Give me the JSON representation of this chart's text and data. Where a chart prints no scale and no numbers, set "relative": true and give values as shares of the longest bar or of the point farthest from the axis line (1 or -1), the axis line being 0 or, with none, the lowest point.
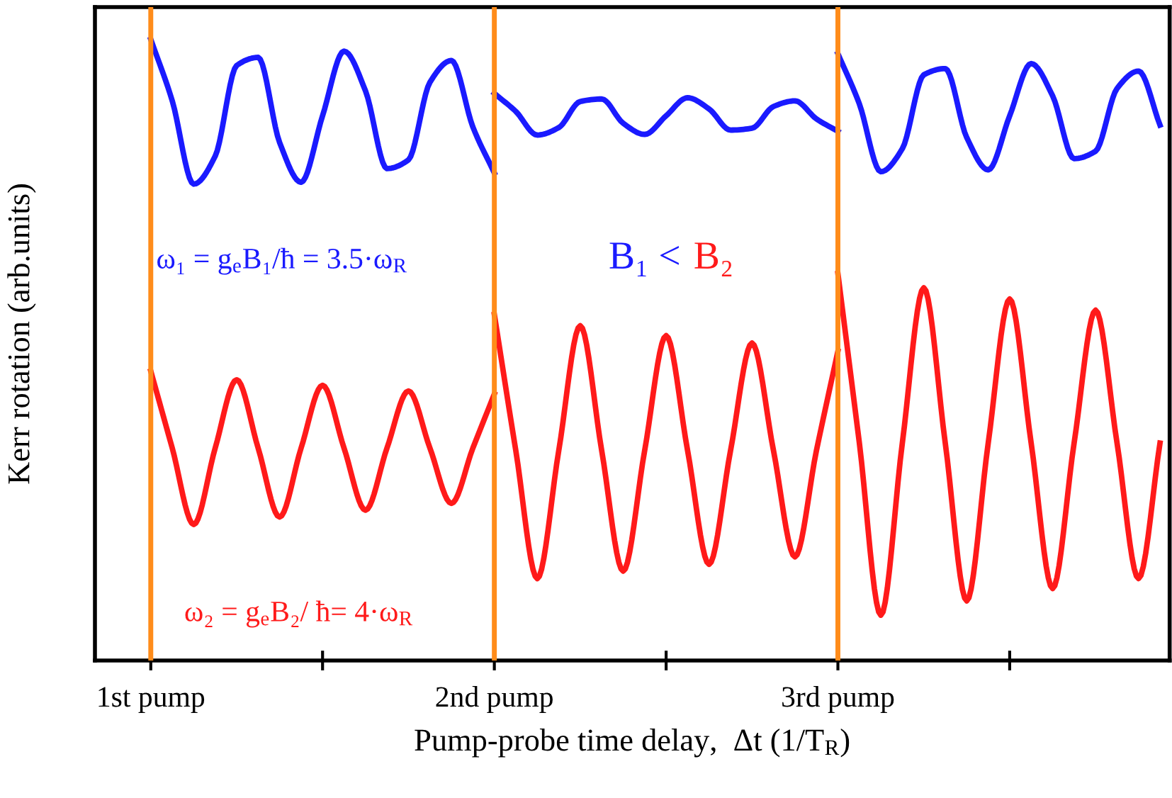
{
  "chart_data": {
    "type": "line",
    "relative": true,
    "xlabel": "Pump-probe time delay,  Δt (1/T$_{R}$)",
    "ylabel": "Kerr rotation (arb.units)",
    "categories": [
      "1st pump",
      null,
      null,
      null,
      null,
      null,
      null,
      null,
      null,
      null,
      null,
      null,
      null,
      null,
      null,
      null,
      "2nd pump",
      null,
      null,
      null,
      null,
      null,
      null,
      null,
      null,
      null,
      null,
      null,
      null,
      null,
      null,
      null,
      "3rd pump",
      null,
      null,
      null,
      null,
      null,
      null,
      null,
      null,
      null,
      null,
      null,
      null,
      null,
      null,
      null
    ],
    "grid": false,
    "marker": "none",
    "line_style": "solid",
    "ref_lines": [
      {
        "axis": "x",
        "value": "1st pump",
        "color": "#ff8c1a"
      },
      {
        "axis": "x",
        "value": "2nd pump",
        "color": "#ff8c1a"
      },
      {
        "axis": "x",
        "value": "3rd pump",
        "color": "#ff8c1a"
      }
    ],
    "annotations": [
      "ω₁ = g$_{e}$B₁/ħ = 3.5·ω$_{R}$",
      "B₁ <",
      "B₂",
      "ω₂ = g$_{e}$B₂/ ħ= 4·ω$_{R}$"
    ],
    "series": [
      {
        "color": "#1a1aff",
        "values": [
          1.0,
          0.901,
          0.767,
          0.812,
          0.958,
          0.971,
          0.834,
          0.77,
          0.877,
          0.981,
          0.917,
          0.792,
          0.806,
          0.931,
          0.966,
          0.859,
          0.785,
          null,
          null,
          null,
          null,
          null,
          null,
          null,
          null,
          null,
          null,
          null,
          null,
          null,
          null,
          null,
          null,
          null,
          null,
          null,
          null,
          null,
          null,
          null,
          null,
          null,
          null,
          null,
          null,
          null,
          null,
          null
        ]
      },
      {
        "color": "#1a1aff",
        "values": [
          null,
          null,
          null,
          null,
          null,
          null,
          null,
          null,
          null,
          null,
          null,
          null,
          null,
          null,
          null,
          null,
          0.913,
          0.884,
          0.846,
          0.858,
          0.9,
          0.904,
          0.865,
          0.847,
          0.877,
          0.906,
          0.888,
          0.854,
          0.857,
          0.892,
          0.901,
          0.872,
          0.852,
          null,
          null,
          null,
          null,
          null,
          null,
          null,
          null,
          null,
          null,
          null,
          null,
          null,
          null,
          null
        ]
      },
      {
        "color": "#1a1aff",
        "values": [
          null,
          null,
          null,
          null,
          null,
          null,
          null,
          null,
          null,
          null,
          null,
          null,
          null,
          null,
          null,
          null,
          null,
          null,
          null,
          null,
          null,
          null,
          null,
          null,
          null,
          null,
          null,
          null,
          null,
          null,
          null,
          null,
          0.977,
          0.896,
          0.787,
          0.824,
          0.943,
          0.953,
          0.842,
          0.79,
          0.877,
          0.961,
          0.909,
          0.808,
          0.82,
          0.921,
          0.949,
          0.862
        ]
      },
      {
        "color": "#ff1a1a",
        "values": [
          0.466,
          0.342,
          0.219,
          0.342,
          0.452,
          0.342,
          0.231,
          0.342,
          0.443,
          0.342,
          0.242,
          0.342,
          0.434,
          0.342,
          0.253,
          0.342,
          0.429,
          null,
          null,
          null,
          null,
          null,
          null,
          null,
          null,
          null,
          null,
          null,
          null,
          null,
          null,
          null,
          null,
          null,
          null,
          null,
          null,
          null,
          null,
          null,
          null,
          null,
          null,
          null,
          null,
          null,
          null,
          null
        ]
      },
      {
        "color": "#ff1a1a",
        "values": [
          null,
          null,
          null,
          null,
          null,
          null,
          null,
          null,
          null,
          null,
          null,
          null,
          null,
          null,
          null,
          null,
          0.557,
          0.338,
          0.132,
          0.338,
          0.539,
          0.338,
          0.144,
          0.338,
          0.523,
          0.338,
          0.155,
          0.338,
          0.511,
          0.338,
          0.167,
          0.338,
          0.498,
          null,
          null,
          null,
          null,
          null,
          null,
          null,
          null,
          null,
          null,
          null,
          null,
          null,
          null,
          null
        ]
      },
      {
        "color": "#ff1a1a",
        "values": [
          null,
          null,
          null,
          null,
          null,
          null,
          null,
          null,
          null,
          null,
          null,
          null,
          null,
          null,
          null,
          null,
          null,
          null,
          null,
          null,
          null,
          null,
          null,
          null,
          null,
          null,
          null,
          null,
          null,
          null,
          null,
          null,
          0.623,
          0.35,
          0.073,
          0.35,
          0.6,
          0.35,
          0.096,
          0.35,
          0.582,
          0.35,
          0.116,
          0.35,
          0.564,
          0.35,
          0.132,
          0.35
        ]
      }
    ]
  }
}
